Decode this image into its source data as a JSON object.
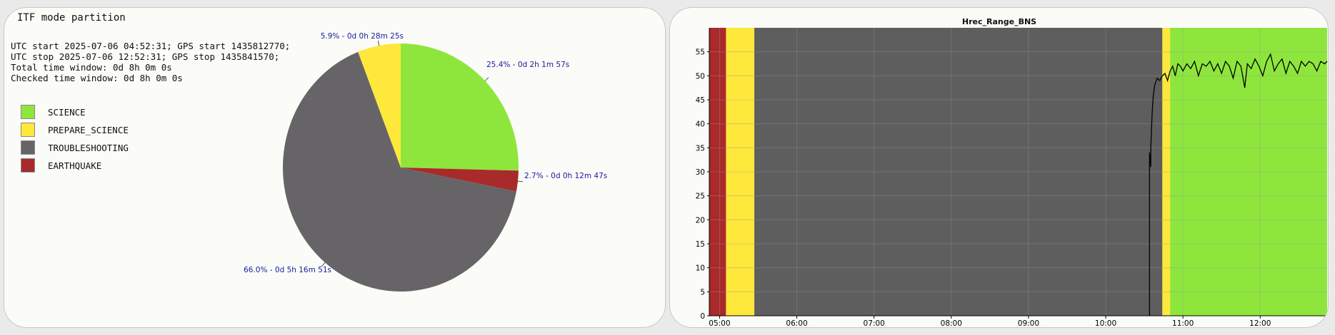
{
  "left_panel": {
    "title": "ITF mode partition",
    "info_lines": [
      "UTC start 2025-07-06 04:52:31; GPS start 1435812770;",
      "UTC stop 2025-07-06 12:52:31; GPS stop 1435841570;",
      "Total time window: 0d 8h 0m 0s",
      "Checked time window: 0d 8h 0m 0s"
    ],
    "legend": [
      {
        "label": "SCIENCE",
        "color": "#8ee63c"
      },
      {
        "label": "PREPARE_SCIENCE",
        "color": "#fde83b"
      },
      {
        "label": "TROUBLESHOOTING",
        "color": "#666466"
      },
      {
        "label": "EARTHQUAKE",
        "color": "#a92a2a"
      }
    ]
  },
  "chart_data": [
    {
      "type": "pie",
      "title": "",
      "slices": [
        {
          "name": "SCIENCE",
          "value": 25.4,
          "color": "#8ee63c",
          "label": "25.4% - 0d 2h 1m 57s"
        },
        {
          "name": "EARTHQUAKE",
          "value": 2.7,
          "color": "#a92a2a",
          "label": "2.7% - 0d 0h 12m 47s"
        },
        {
          "name": "TROUBLESHOOTING",
          "value": 66.0,
          "color": "#666466",
          "label": "66.0% - 0d 5h 16m 51s"
        },
        {
          "name": "PREPARE_SCIENCE",
          "value": 5.9,
          "color": "#fde83b",
          "label": "5.9% - 0d 0h 28m 25s"
        }
      ],
      "start_angle": "90deg, clockwise"
    },
    {
      "type": "line",
      "title": "Hrec_Range_BNS",
      "xlabel": "",
      "ylabel": "",
      "xlim": [
        "04:52",
        "12:52"
      ],
      "ylim": [
        0,
        60
      ],
      "x_ticks": [
        "05:00",
        "06:00",
        "07:00",
        "08:00",
        "09:00",
        "10:00",
        "11:00",
        "12:00"
      ],
      "y_ticks": [
        0,
        5,
        10,
        15,
        20,
        25,
        30,
        35,
        40,
        45,
        50,
        55
      ],
      "grid": true,
      "background_bands": [
        {
          "mode": "EARTHQUAKE",
          "start": "04:52",
          "end": "05:05",
          "color": "#a92a2a"
        },
        {
          "mode": "PREPARE_SCIENCE",
          "start": "05:05",
          "end": "05:27",
          "color": "#fde83b"
        },
        {
          "mode": "TROUBLESHOOTING",
          "start": "05:27",
          "end": "10:44",
          "color": "#5e5e5e"
        },
        {
          "mode": "PREPARE_SCIENCE",
          "start": "10:44",
          "end": "10:50",
          "color": "#fde83b"
        },
        {
          "mode": "SCIENCE",
          "start": "10:50",
          "end": "12:52",
          "color": "#8ee63c"
        }
      ],
      "series": [
        {
          "color": "#000000",
          "points": [
            [
              "10:34",
              0
            ],
            [
              "10:34",
              34
            ],
            [
              "10:35",
              31
            ],
            [
              "10:35",
              35
            ],
            [
              "10:36",
              42
            ],
            [
              "10:37",
              46
            ],
            [
              "10:38",
              48
            ],
            [
              "10:40",
              49.5
            ],
            [
              "10:42",
              49
            ],
            [
              "10:44",
              50
            ],
            [
              "10:46",
              50.5
            ],
            [
              "10:48",
              49
            ],
            [
              "10:50",
              51
            ],
            [
              "10:52",
              52
            ],
            [
              "10:54",
              50
            ],
            [
              "10:56",
              52.5
            ],
            [
              "10:58",
              52
            ],
            [
              "11:00",
              51
            ],
            [
              "11:03",
              52.5
            ],
            [
              "11:06",
              51.5
            ],
            [
              "11:09",
              53
            ],
            [
              "11:12",
              50
            ],
            [
              "11:15",
              52.5
            ],
            [
              "11:18",
              52
            ],
            [
              "11:21",
              53
            ],
            [
              "11:24",
              51
            ],
            [
              "11:27",
              52.5
            ],
            [
              "11:30",
              50.5
            ],
            [
              "11:33",
              53
            ],
            [
              "11:36",
              52
            ],
            [
              "11:39",
              49.5
            ],
            [
              "11:42",
              53
            ],
            [
              "11:45",
              52
            ],
            [
              "11:48",
              47.5
            ],
            [
              "11:50",
              52.5
            ],
            [
              "11:53",
              51.5
            ],
            [
              "11:56",
              53.5
            ],
            [
              "11:59",
              52
            ],
            [
              "12:02",
              50
            ],
            [
              "12:05",
              53
            ],
            [
              "12:08",
              54.5
            ],
            [
              "12:11",
              51
            ],
            [
              "12:14",
              52.5
            ],
            [
              "12:17",
              53.5
            ],
            [
              "12:20",
              50.5
            ],
            [
              "12:23",
              53
            ],
            [
              "12:26",
              52
            ],
            [
              "12:29",
              50.5
            ],
            [
              "12:32",
              53
            ],
            [
              "12:35",
              52
            ],
            [
              "12:38",
              53
            ],
            [
              "12:41",
              52.5
            ],
            [
              "12:44",
              51
            ],
            [
              "12:47",
              53
            ],
            [
              "12:50",
              52.5
            ],
            [
              "12:52",
              53
            ]
          ]
        }
      ]
    }
  ]
}
